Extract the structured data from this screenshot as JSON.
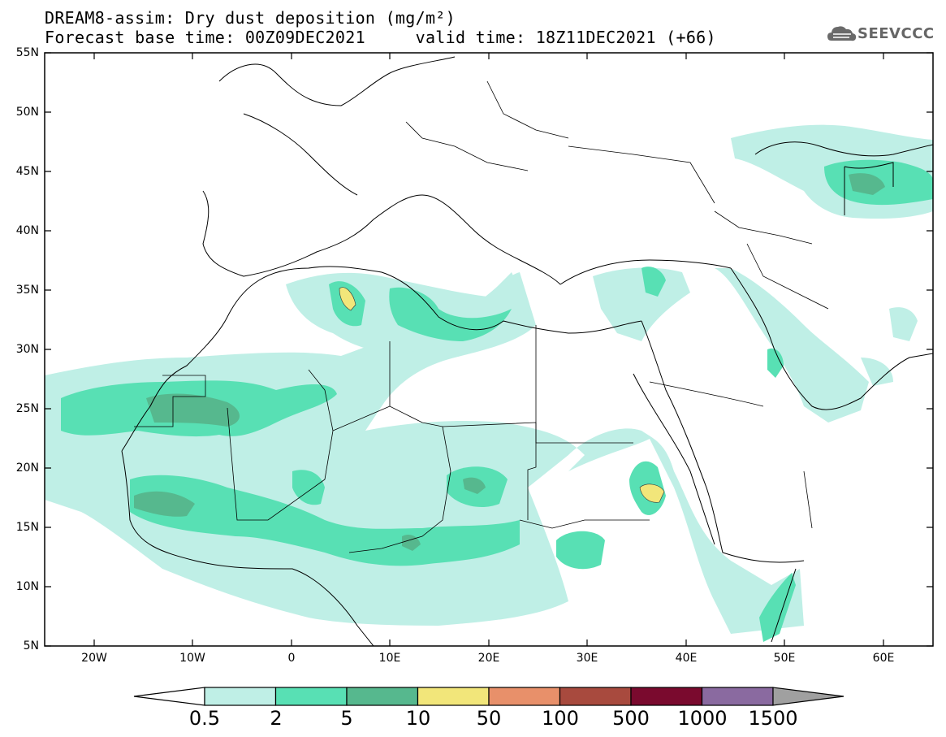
{
  "header": {
    "title_line1": "DREAM8-assim: Dry dust deposition (mg/m²)",
    "title_line2": "Forecast base time: 00Z09DEC2021     valid time: 18Z11DEC2021 (+66)",
    "logo_text": "SEEVCCC",
    "logo_icon": "cloud-icon"
  },
  "map": {
    "lat_labels": [
      "55N",
      "50N",
      "45N",
      "40N",
      "35N",
      "30N",
      "25N",
      "20N",
      "15N",
      "10N",
      "5N"
    ],
    "lon_labels": [
      "20W",
      "10W",
      "0",
      "10E",
      "20E",
      "30E",
      "40E",
      "50E",
      "60E"
    ],
    "extent": {
      "lon_min": -25,
      "lon_max": 65,
      "lat_min": 5,
      "lat_max": 55
    }
  },
  "colorbar": {
    "labels": [
      "0.5",
      "2",
      "5",
      "10",
      "50",
      "100",
      "500",
      "1000",
      "1500"
    ],
    "colors": [
      "#bfefe6",
      "#58e0b4",
      "#56b88e",
      "#f2e67a",
      "#e8906a",
      "#a84a3e",
      "#7a0a2e",
      "#8a6aa0"
    ],
    "under_color": "#ffffff",
    "over_color": "#a0a0a0",
    "units": "mg/m²"
  }
}
